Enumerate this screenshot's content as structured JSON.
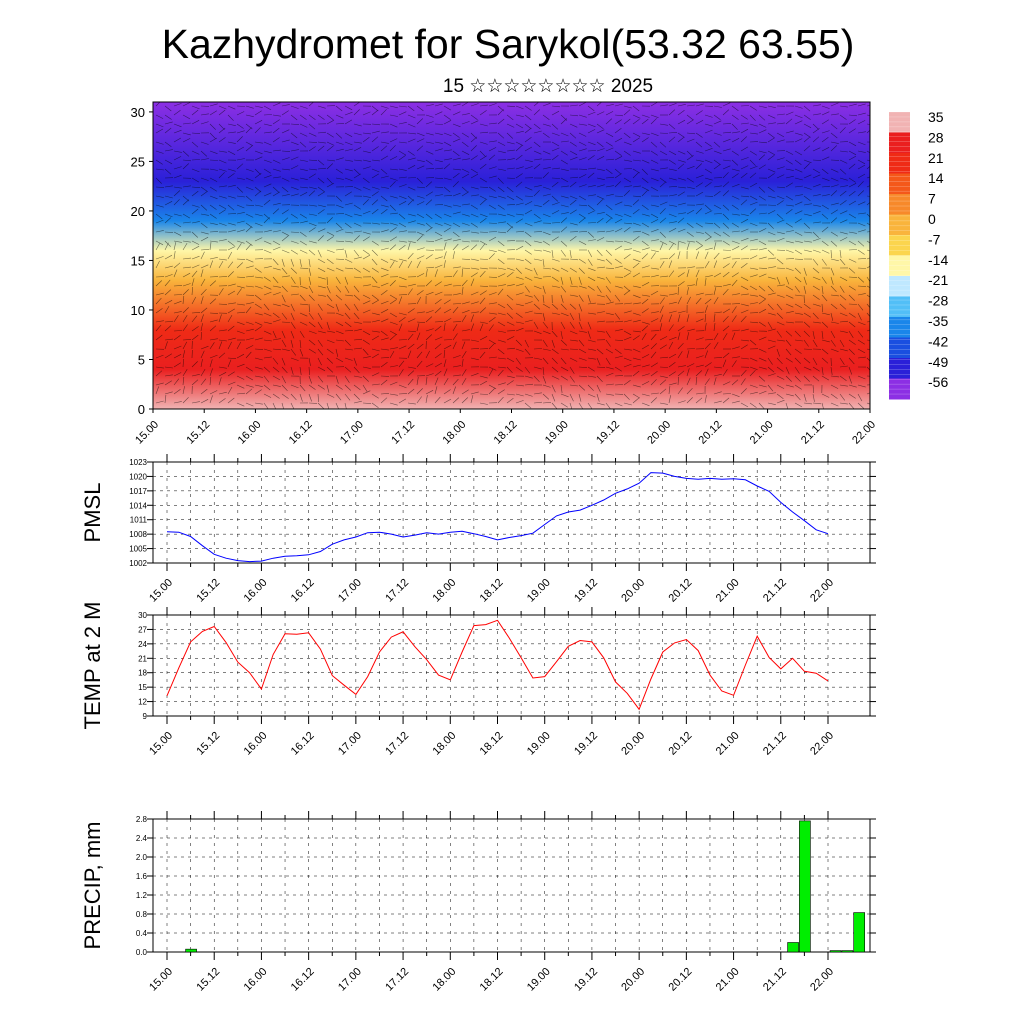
{
  "page": {
    "title": "Kazhydromet for Sarykol(53.32 63.55)",
    "subtitle": "15 ☆☆☆☆☆☆☆☆ 2025"
  },
  "chart_data": [
    {
      "type": "heatmap",
      "xticks": [
        "15.00",
        "15.12",
        "16.00",
        "16.12",
        "17.00",
        "17.12",
        "18.00",
        "18.12",
        "19.00",
        "19.12",
        "20.00",
        "20.12",
        "21.00",
        "21.12",
        "22.00"
      ],
      "yticks": [
        0,
        5,
        10,
        15,
        20,
        25,
        30
      ],
      "ylim": [
        0,
        31
      ],
      "colorbar_labels": [
        "35",
        "28",
        "21",
        "14",
        "7",
        "0",
        "-7",
        "-14",
        "-21",
        "-28",
        "-35",
        "-42",
        "-49",
        "-56"
      ],
      "colorbar_colors": [
        "#f1b3b3",
        "#ea1f1f",
        "#ef2b16",
        "#f4581a",
        "#f7892a",
        "#f9b43c",
        "#fbd54e",
        "#fff7a8",
        "#bfe8ff",
        "#52bff7",
        "#1a86ea",
        "#1a4fe0",
        "#2a20d8",
        "#8c2fe4"
      ],
      "temperature_profile": [
        {
          "level": 0,
          "value": 33
        },
        {
          "level": 4,
          "value": 30
        },
        {
          "level": 8,
          "value": 18
        },
        {
          "level": 13,
          "value": 3
        },
        {
          "level": 16,
          "value": -14
        },
        {
          "level": 19,
          "value": -35
        },
        {
          "level": 23,
          "value": -52
        },
        {
          "level": 31,
          "value": -58
        }
      ],
      "grid": false
    },
    {
      "type": "line",
      "ylabel": "PMSL",
      "ylim": [
        1002,
        1023
      ],
      "yticks": [
        1002,
        1005,
        1008,
        1011,
        1014,
        1017,
        1020,
        1023
      ],
      "xticks": [
        "15.00",
        "15.12",
        "16.00",
        "16.12",
        "17.00",
        "17.12",
        "18.00",
        "18.12",
        "19.00",
        "19.12",
        "20.00",
        "20.12",
        "21.00",
        "21.12",
        "22.00"
      ],
      "color": "#0000ff",
      "values": [
        1008.5,
        1008.4,
        1007.5,
        1005.6,
        1003.8,
        1003.0,
        1002.5,
        1002.3,
        1002.4,
        1003.0,
        1003.4,
        1003.5,
        1003.7,
        1004.4,
        1005.9,
        1006.8,
        1007.4,
        1008.3,
        1008.4,
        1008.0,
        1007.4,
        1007.8,
        1008.3,
        1008.0,
        1008.4,
        1008.6,
        1008.1,
        1007.5,
        1006.8,
        1007.3,
        1007.7,
        1008.2,
        1010.0,
        1011.8,
        1012.6,
        1013.0,
        1014.0,
        1015.1,
        1016.5,
        1017.4,
        1018.6,
        1020.8,
        1020.7,
        1020.0,
        1019.6,
        1019.4,
        1019.6,
        1019.4,
        1019.5,
        1019.3,
        1018.0,
        1016.9,
        1014.6,
        1012.6,
        1010.8,
        1008.9,
        1008.1
      ],
      "grid": true
    },
    {
      "type": "line",
      "ylabel": "TEMP at 2 M",
      "ylim": [
        9,
        30
      ],
      "yticks": [
        9,
        12,
        15,
        18,
        21,
        24,
        27,
        30
      ],
      "xticks": [
        "15.00",
        "15.12",
        "16.00",
        "16.12",
        "17.00",
        "17.12",
        "18.00",
        "18.12",
        "19.00",
        "19.12",
        "20.00",
        "20.12",
        "21.00",
        "21.12",
        "22.00"
      ],
      "color": "#ff0000",
      "values": [
        13.2,
        19.0,
        24.4,
        26.6,
        27.6,
        24.3,
        20.2,
        18.0,
        14.6,
        21.8,
        26.1,
        26.0,
        26.3,
        22.9,
        17.4,
        15.4,
        13.5,
        17.2,
        22.3,
        25.4,
        26.5,
        23.4,
        20.7,
        17.5,
        16.5,
        22.3,
        27.8,
        28.0,
        28.9,
        25.2,
        21.1,
        16.9,
        17.2,
        20.3,
        23.5,
        24.7,
        24.4,
        21.1,
        16.1,
        13.7,
        10.4,
        16.7,
        22.3,
        24.2,
        24.9,
        22.6,
        17.5,
        14.2,
        13.3,
        19.6,
        25.6,
        21.2,
        18.8,
        21.0,
        18.3,
        17.9,
        16.3
      ],
      "grid": true
    },
    {
      "type": "bar",
      "ylabel": "PRECIP, mm",
      "ylim": [
        0,
        2.8
      ],
      "yticks": [
        "0.0",
        "0.4",
        "0.8",
        "1.2",
        "1.6",
        "2.0",
        "2.4",
        "2.8"
      ],
      "xticks": [
        "15.00",
        "15.12",
        "16.00",
        "16.12",
        "17.00",
        "17.12",
        "18.00",
        "18.12",
        "19.00",
        "19.12",
        "20.00",
        "20.12",
        "21.00",
        "21.12",
        "22.00"
      ],
      "color": "#00ee00",
      "bars": [
        {
          "x": 2.0,
          "value": 0.06
        },
        {
          "x": 53.0,
          "value": 0.2
        },
        {
          "x": 54.0,
          "value": 2.76
        },
        {
          "x": 56.6,
          "value": 0.03
        },
        {
          "x": 57.6,
          "value": 0.03
        },
        {
          "x": 58.6,
          "value": 0.83
        }
      ],
      "grid": true
    }
  ]
}
